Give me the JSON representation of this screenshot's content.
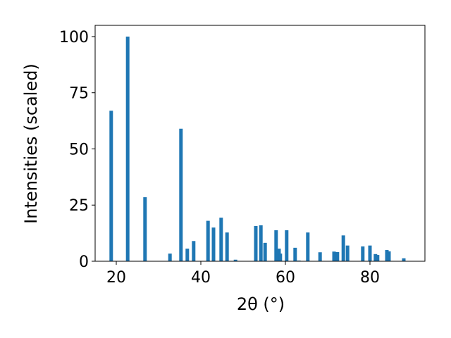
{
  "chart_data": {
    "type": "bar",
    "xlabel": "2θ (°)",
    "ylabel": "Intensities (scaled)",
    "x": [
      18.8,
      22.7,
      26.8,
      32.7,
      35.3,
      36.8,
      38.3,
      41.7,
      43.0,
      44.8,
      46.2,
      48.2,
      53.0,
      54.2,
      55.2,
      57.8,
      58.5,
      58.8,
      60.3,
      62.3,
      63.2,
      65.3,
      68.2,
      71.5,
      72.3,
      73.7,
      74.7,
      78.3,
      80.0,
      81.3,
      81.8,
      84.0,
      84.5,
      88.0
    ],
    "values": [
      67,
      100,
      28.5,
      3.4,
      59,
      5.6,
      9,
      18,
      15,
      19.4,
      12.8,
      0.7,
      15.7,
      16,
      8.2,
      13.8,
      5.6,
      3.4,
      13.8,
      6,
      0.3,
      12.8,
      4,
      4.3,
      4.1,
      11.5,
      7,
      6.6,
      7,
      3.2,
      2.8,
      5,
      4.4,
      1.3
    ],
    "color": "#1f77b4",
    "xlim": [
      15,
      93
    ],
    "ylim": [
      0,
      105
    ],
    "xticks": [
      20,
      40,
      60,
      80
    ],
    "yticks": [
      0,
      25,
      50,
      75,
      100
    ]
  }
}
